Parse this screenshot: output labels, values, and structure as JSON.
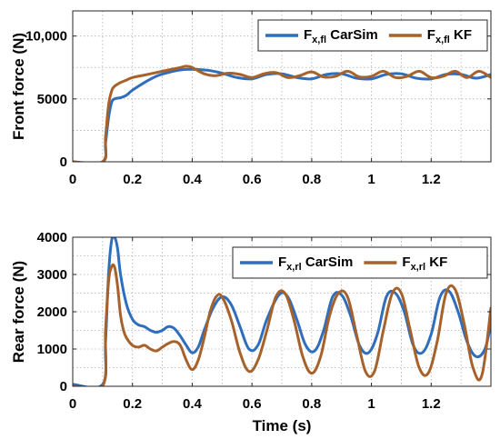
{
  "chart_data": [
    {
      "type": "line",
      "title": "",
      "xlabel": "",
      "ylabel": "Front force (N)",
      "xlim": [
        0,
        1.4
      ],
      "ylim": [
        0,
        12000
      ],
      "xticks": [
        0,
        0.2,
        0.4,
        0.6,
        0.8,
        1.0,
        1.2
      ],
      "xtick_labels": [
        "0",
        "0.2",
        "0.4",
        "0.6",
        "0.8",
        "1",
        "1.2"
      ],
      "yticks": [
        0,
        5000,
        10000
      ],
      "ytick_labels": [
        "0",
        "5000",
        "10,000"
      ],
      "grid": true,
      "legend_position": "top-right",
      "series": [
        {
          "label_main": "F",
          "label_sub": "x,fl",
          "label_rest": " CarSim",
          "color": "#2f6dbd",
          "x": [
            0,
            0.1,
            0.11,
            0.12,
            0.13,
            0.14,
            0.16,
            0.18,
            0.2,
            0.24,
            0.28,
            0.32,
            0.36,
            0.4,
            0.44,
            0.46,
            0.5,
            0.55,
            0.6,
            0.65,
            0.7,
            0.75,
            0.8,
            0.85,
            0.9,
            0.95,
            1.0,
            1.05,
            1.1,
            1.15,
            1.2,
            1.25,
            1.3,
            1.35,
            1.4
          ],
          "y": [
            0,
            0,
            1500,
            3500,
            4700,
            5000,
            5100,
            5300,
            5700,
            6300,
            6800,
            7100,
            7300,
            7350,
            7300,
            7250,
            7050,
            6700,
            6600,
            6950,
            7000,
            6700,
            6600,
            6950,
            7000,
            6650,
            6600,
            6950,
            7000,
            6650,
            6600,
            6950,
            6950,
            6650,
            6950
          ]
        },
        {
          "label_main": "F",
          "label_sub": "x,fl",
          "label_rest": " KF",
          "color": "#a6622a",
          "x": [
            0,
            0.1,
            0.11,
            0.12,
            0.13,
            0.14,
            0.16,
            0.18,
            0.2,
            0.24,
            0.28,
            0.32,
            0.36,
            0.38,
            0.4,
            0.44,
            0.48,
            0.52,
            0.56,
            0.6,
            0.64,
            0.68,
            0.72,
            0.76,
            0.8,
            0.84,
            0.88,
            0.92,
            0.96,
            1.0,
            1.04,
            1.08,
            1.12,
            1.16,
            1.2,
            1.24,
            1.28,
            1.32,
            1.36,
            1.4
          ],
          "y": [
            0,
            0,
            2000,
            4500,
            5600,
            6000,
            6300,
            6500,
            6700,
            6900,
            7100,
            7300,
            7500,
            7600,
            7500,
            7000,
            6850,
            7050,
            6950,
            6700,
            7000,
            7100,
            6700,
            6850,
            7150,
            6750,
            6800,
            7200,
            6750,
            6800,
            7200,
            6700,
            6800,
            7200,
            6700,
            6800,
            7200,
            6700,
            7200,
            6700
          ]
        }
      ]
    },
    {
      "type": "line",
      "title": "",
      "xlabel": "Time (s)",
      "ylabel": "Rear force (N)",
      "xlim": [
        0,
        1.4
      ],
      "ylim": [
        0,
        4000
      ],
      "xticks": [
        0,
        0.2,
        0.4,
        0.6,
        0.8,
        1.0,
        1.2
      ],
      "xtick_labels": [
        "0",
        "0.2",
        "0.4",
        "0.6",
        "0.8",
        "1",
        "1.2"
      ],
      "yticks": [
        0,
        1000,
        2000,
        3000,
        4000
      ],
      "ytick_labels": [
        "0",
        "1000",
        "2000",
        "3000",
        "4000"
      ],
      "grid": true,
      "legend_position": "top-right",
      "series": [
        {
          "label_main": "F",
          "label_sub": "x,rl",
          "label_rest": " CarSim",
          "color": "#2f6dbd",
          "x": [
            0,
            0.1,
            0.11,
            0.12,
            0.13,
            0.14,
            0.15,
            0.16,
            0.18,
            0.2,
            0.22,
            0.24,
            0.26,
            0.28,
            0.3,
            0.32,
            0.34,
            0.36,
            0.38,
            0.4,
            0.42,
            0.44,
            0.47,
            0.5,
            0.53,
            0.56,
            0.59,
            0.62,
            0.65,
            0.69,
            0.72,
            0.75,
            0.78,
            0.81,
            0.84,
            0.87,
            0.9,
            0.93,
            0.96,
            0.99,
            1.02,
            1.05,
            1.08,
            1.11,
            1.14,
            1.17,
            1.2,
            1.23,
            1.26,
            1.29,
            1.32,
            1.35,
            1.38,
            1.4
          ],
          "y": [
            50,
            50,
            1200,
            3000,
            3900,
            4000,
            3700,
            3000,
            2200,
            1800,
            1650,
            1600,
            1500,
            1450,
            1500,
            1600,
            1550,
            1350,
            1100,
            900,
            1050,
            1500,
            2100,
            2400,
            2200,
            1600,
            1000,
            1100,
            1800,
            2450,
            2400,
            1800,
            1100,
            950,
            1500,
            2400,
            2450,
            1900,
            1100,
            900,
            1400,
            2400,
            2500,
            2000,
            1100,
            900,
            1400,
            2400,
            2550,
            2000,
            1200,
            800,
            1000,
            1700
          ]
        },
        {
          "label_main": "F",
          "label_sub": "x,rl",
          "label_rest": " KF",
          "color": "#a6622a",
          "x": [
            0,
            0.1,
            0.11,
            0.12,
            0.13,
            0.14,
            0.15,
            0.16,
            0.17,
            0.18,
            0.2,
            0.22,
            0.24,
            0.26,
            0.28,
            0.3,
            0.32,
            0.34,
            0.36,
            0.38,
            0.4,
            0.42,
            0.44,
            0.46,
            0.48,
            0.5,
            0.53,
            0.56,
            0.59,
            0.62,
            0.65,
            0.68,
            0.71,
            0.74,
            0.77,
            0.8,
            0.83,
            0.86,
            0.89,
            0.92,
            0.95,
            0.98,
            1.01,
            1.04,
            1.07,
            1.1,
            1.13,
            1.16,
            1.19,
            1.22,
            1.25,
            1.28,
            1.31,
            1.34,
            1.37,
            1.4
          ],
          "y": [
            0,
            0,
            1500,
            2800,
            3200,
            3200,
            2700,
            1900,
            1500,
            1300,
            1100,
            1050,
            1100,
            1000,
            950,
            1050,
            1150,
            1200,
            1100,
            700,
            450,
            700,
            1300,
            2000,
            2400,
            2400,
            1800,
            900,
            400,
            700,
            1500,
            2400,
            2500,
            1800,
            800,
            350,
            800,
            1900,
            2500,
            2400,
            1400,
            400,
            400,
            1500,
            2500,
            2500,
            1500,
            500,
            350,
            1200,
            2500,
            2600,
            1700,
            500,
            300,
            2100
          ]
        }
      ]
    }
  ]
}
